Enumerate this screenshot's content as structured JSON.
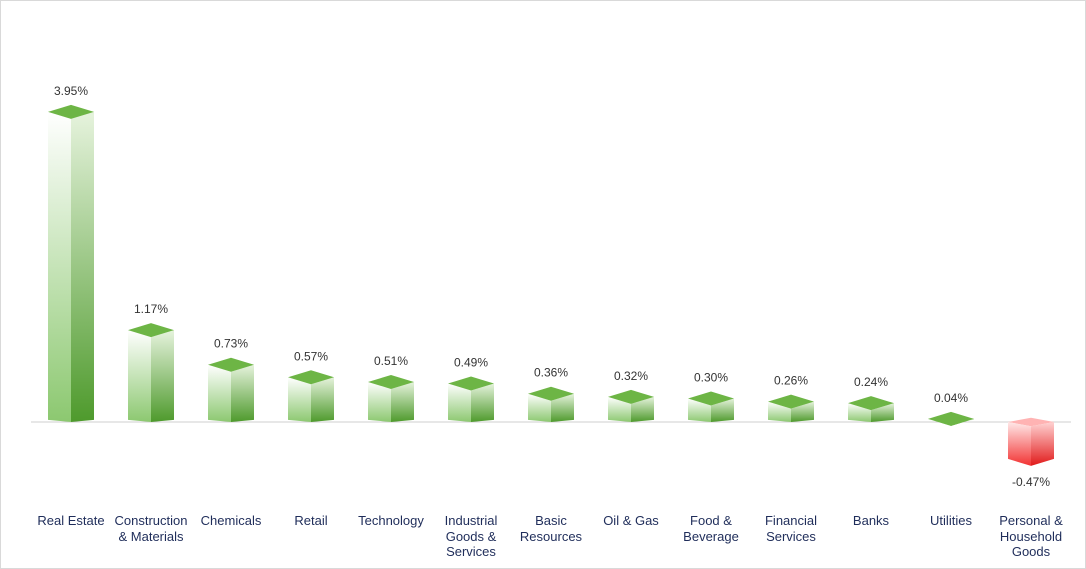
{
  "chart_data": {
    "type": "bar",
    "title": "",
    "xlabel": "",
    "ylabel": "",
    "categories": [
      "Real Estate",
      "Construction & Materials",
      "Chemicals",
      "Retail",
      "Technology",
      "Industrial Goods & Services",
      "Basic Resources",
      "Oil & Gas",
      "Food & Beverage",
      "Financial Services",
      "Banks",
      "Utilities",
      "Personal & Household Goods"
    ],
    "values": [
      3.95,
      1.17,
      0.73,
      0.57,
      0.51,
      0.49,
      0.36,
      0.32,
      0.3,
      0.26,
      0.24,
      0.04,
      -0.47
    ],
    "value_labels": [
      "3.95%",
      "1.17%",
      "0.73%",
      "0.57%",
      "0.51%",
      "0.49%",
      "0.36%",
      "0.32%",
      "0.30%",
      "0.26%",
      "0.24%",
      "0.04%",
      "-0.47%"
    ],
    "ylim": [
      -0.5,
      4.2
    ],
    "grid": false,
    "legend": "none",
    "colors": {
      "positive": "#5fa83a",
      "negative": "#f01c1c"
    }
  }
}
